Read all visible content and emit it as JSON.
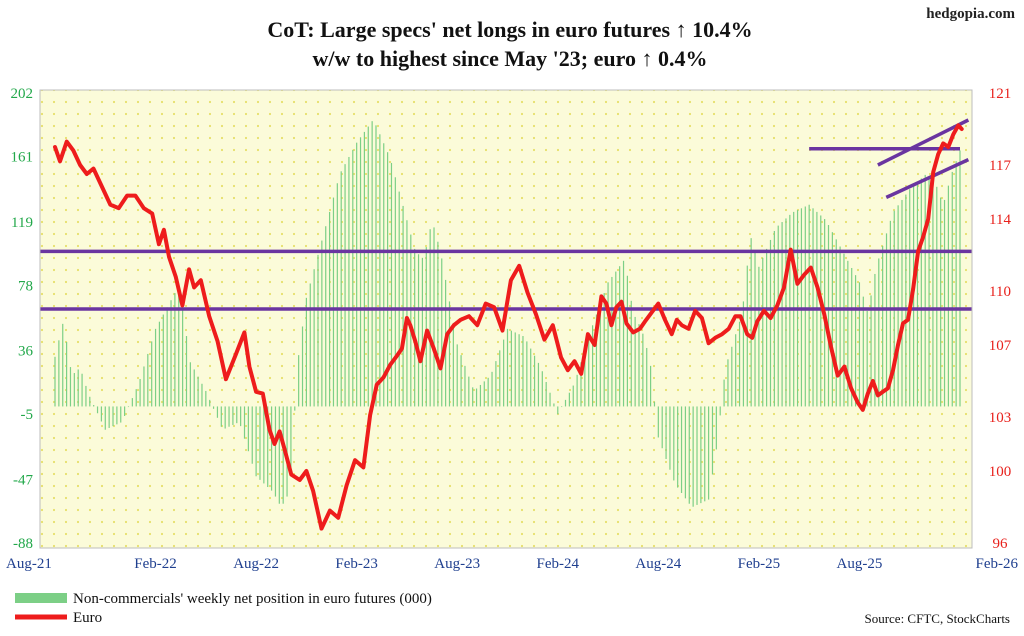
{
  "brand": "hedgopia.com",
  "source": "Source: CFTC, StockCharts",
  "colors": {
    "bars": "#7ccf86",
    "euro": "#ee1c1c",
    "bands": "#6a35a0",
    "left_axis": "#22a84a",
    "right_axis": "#e8211c",
    "plot_bg": "#fbfbd9",
    "grid_dots": "#e6e06a"
  },
  "chart_data": {
    "type": "bar+line",
    "title": "CoT: Large specs' net longs in euro futures ↑ 10.4% w/w to highest since May '23; euro ↑ 0.4%",
    "title_lines": [
      "CoT: Large specs' net longs in euro futures ↑ 10.4%",
      "w/w to highest since May '23; euro ↑ 0.4%"
    ],
    "x_ticks": [
      "Aug-21",
      "Feb-22",
      "Aug-22",
      "Feb-23",
      "Aug-23",
      "Feb-24",
      "Aug-24",
      "Feb-25",
      "Aug-25",
      "Feb-26"
    ],
    "x_range_months": [
      0,
      54
    ],
    "left_axis": {
      "label": "Non-commercials' weekly net position in euro futures (000)",
      "ticks": [
        202,
        161,
        119,
        78,
        36,
        -5,
        -47,
        -88
      ],
      "range": [
        -88,
        202
      ]
    },
    "right_axis": {
      "label": "Euro",
      "ticks": [
        121,
        117,
        114,
        110,
        107,
        103,
        100,
        96
      ],
      "range": [
        96,
        121
      ]
    },
    "legend": [
      "Non-commercials' weekly net position in euro futures (000)",
      "Euro"
    ],
    "net_position_series": {
      "name": "Non-commercials' weekly net position in euro futures (000)",
      "t": [
        0,
        0.5,
        1,
        1.5,
        2,
        3,
        4,
        5,
        6,
        7,
        7.5,
        8,
        9,
        10,
        11,
        12,
        13,
        13.5,
        14,
        14.5,
        15,
        16,
        17,
        18,
        19,
        20,
        21,
        21.5,
        22,
        22.5,
        23,
        23.5,
        24,
        25,
        26,
        27,
        28,
        29,
        30,
        31,
        32,
        33,
        34,
        34.5,
        35,
        35.5,
        36,
        37,
        38,
        39,
        39.5,
        40,
        41,
        41.5,
        42,
        43,
        44,
        45,
        46,
        47,
        48,
        48.5,
        49,
        50,
        51,
        52,
        52.5,
        53,
        53.5,
        54
      ],
      "values": [
        32,
        55,
        20,
        25,
        8,
        -15,
        -10,
        15,
        50,
        70,
        80,
        30,
        10,
        -15,
        -10,
        -45,
        -55,
        -65,
        -55,
        30,
        70,
        110,
        150,
        170,
        185,
        160,
        120,
        100,
        95,
        120,
        100,
        70,
        40,
        10,
        20,
        50,
        45,
        25,
        -5,
        15,
        50,
        80,
        95,
        60,
        50,
        30,
        -20,
        -50,
        -65,
        -60,
        -25,
        25,
        60,
        110,
        90,
        115,
        125,
        130,
        120,
        100,
        80,
        60,
        90,
        125,
        140,
        150,
        145,
        130,
        150,
        165
      ]
    },
    "euro_series": {
      "name": "Euro",
      "t": [
        0,
        0.3,
        0.7,
        1.1,
        1.5,
        1.9,
        2.3,
        2.8,
        3.3,
        3.8,
        4.3,
        4.8,
        5.3,
        5.8,
        6.2,
        6.5,
        6.8,
        7.2,
        7.6,
        8,
        8.3,
        8.7,
        9.2,
        9.7,
        10.2,
        10.8,
        11.3,
        11.6,
        12,
        12.4,
        12.8,
        13.1,
        13.4,
        13.7,
        14.1,
        14.6,
        15,
        15.4,
        15.9,
        16.4,
        16.9,
        17.4,
        17.9,
        18.4,
        18.8,
        19.2,
        19.6,
        20,
        20.4,
        20.7,
        21,
        21.2,
        21.5,
        21.8,
        22.2,
        22.6,
        23,
        23.4,
        23.8,
        24.2,
        24.7,
        25.2,
        25.7,
        26.2,
        26.7,
        27.2,
        27.7,
        28.2,
        28.7,
        29.2,
        29.7,
        30.2,
        30.6,
        31,
        31.4,
        31.8,
        32.2,
        32.6,
        32.9,
        33.2,
        33.5,
        33.8,
        34.1,
        34.5,
        34.9,
        35.2,
        35.6,
        36,
        36.4,
        36.8,
        37.1,
        37.4,
        37.8,
        38.2,
        38.6,
        39,
        39.4,
        39.8,
        40.2,
        40.6,
        40.9,
        41.3,
        41.6,
        41.9,
        42.3,
        42.7,
        43.1,
        43.5,
        43.9,
        44.3,
        44.7,
        45.1,
        45.5,
        45.9,
        46.3,
        46.7,
        47.1,
        47.5,
        47.9,
        48.2,
        48.5,
        48.8,
        49.1,
        49.4,
        49.7,
        50,
        50.3,
        50.6,
        50.9,
        51.2,
        51.5,
        51.8,
        52.1,
        52.4,
        52.7,
        53,
        53.3,
        53.6,
        53.9,
        54.1
      ],
      "values": [
        118.0,
        117.2,
        118.3,
        117.8,
        117.0,
        116.5,
        116.8,
        115.8,
        114.8,
        114.6,
        115.3,
        115.3,
        114.6,
        114.3,
        112.6,
        113.4,
        111.9,
        110.8,
        109.2,
        111.2,
        110.2,
        110.6,
        108.6,
        107.2,
        105.1,
        106.5,
        107.7,
        105.8,
        104.4,
        104.3,
        102.3,
        101.5,
        102.2,
        101.2,
        99.8,
        99.5,
        100.0,
        98.9,
        96.8,
        97.8,
        97.4,
        99.2,
        100.6,
        100.2,
        103.1,
        104.8,
        105.2,
        105.9,
        106.4,
        106.8,
        108.5,
        108.1,
        107.2,
        106.1,
        107.8,
        106.8,
        105.7,
        107.6,
        108.1,
        108.4,
        108.6,
        108.1,
        109.3,
        109.1,
        107.8,
        110.6,
        111.4,
        109.9,
        108.7,
        107.3,
        108.1,
        106.3,
        105.6,
        106.1,
        105.4,
        107.6,
        107.0,
        109.7,
        109.3,
        108.1,
        109.1,
        109.4,
        108.2,
        107.7,
        107.9,
        108.3,
        108.8,
        109.3,
        108.4,
        107.6,
        108.4,
        108.1,
        107.9,
        108.9,
        108.5,
        107.1,
        107.4,
        107.6,
        107.9,
        108.6,
        108.6,
        107.6,
        107.4,
        108.3,
        108.9,
        108.5,
        109.2,
        110.2,
        112.3,
        110.4,
        110.9,
        111.3,
        110.2,
        108.7,
        106.9,
        105.3,
        105.8,
        104.6,
        103.8,
        103.4,
        104.3,
        105.0,
        104.2,
        104.4,
        104.6,
        105.6,
        107.0,
        108.2,
        108.4,
        110.1,
        112.2,
        113.0,
        114.0,
        116.6,
        117.6,
        118.2,
        118.0,
        118.7,
        119.2,
        119.0
      ]
    },
    "horizontal_bands": [
      {
        "axis": "right",
        "value": 112.2
      },
      {
        "axis": "right",
        "value": 109.0
      },
      {
        "axis": "right",
        "value": 117.9,
        "from_t": 45.0,
        "to_t": 54.0
      }
    ],
    "channel_lines": [
      {
        "axis": "right",
        "from": [
          49.1,
          117.0
        ],
        "to": [
          54.5,
          119.5
        ]
      },
      {
        "axis": "right",
        "from": [
          49.6,
          115.2
        ],
        "to": [
          54.5,
          117.3
        ]
      }
    ]
  }
}
